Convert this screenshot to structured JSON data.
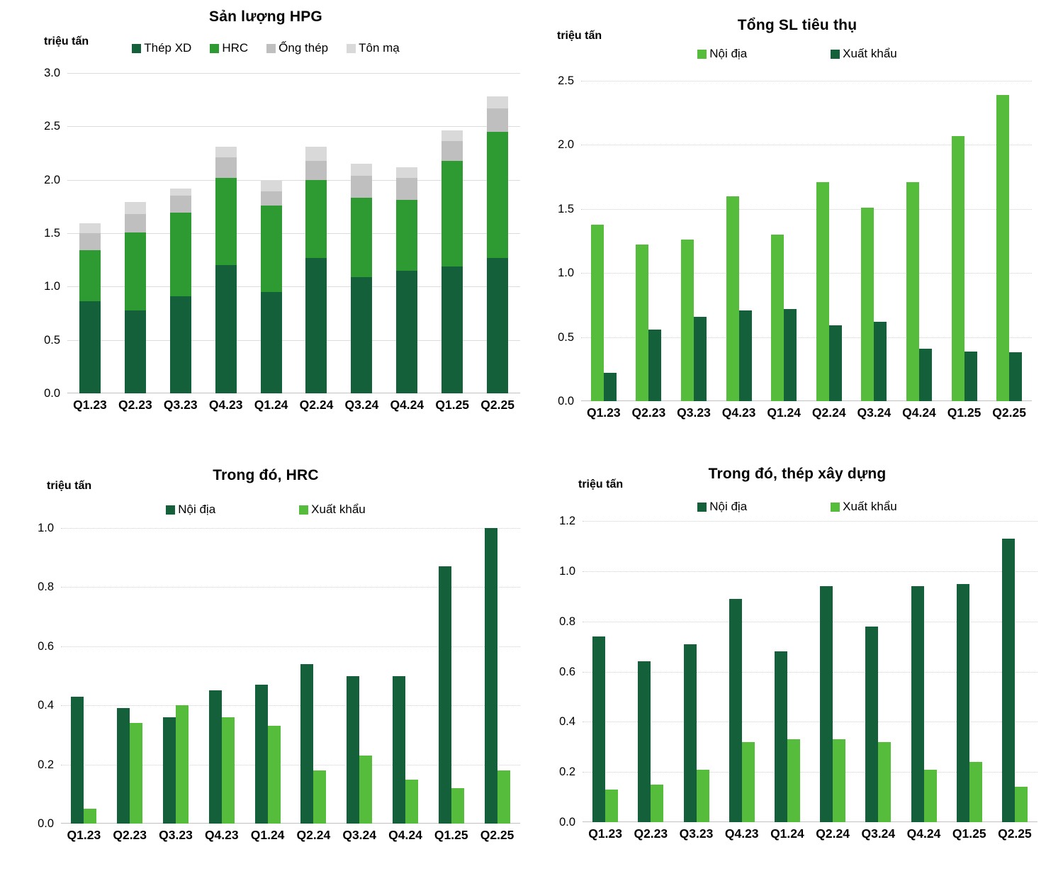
{
  "page": {
    "background": "#ffffff"
  },
  "colors": {
    "dark_green": "#14603A",
    "mid_green": "#2E9B32",
    "light_green": "#55BD3B",
    "gray": "#BFBFBF",
    "light_gray": "#D9D9D9"
  },
  "chart_data": [
    {
      "type": "bar",
      "subtype": "stacked",
      "title": "Sản lượng HPG",
      "unit_label": "triệu tấn",
      "categories": [
        "Q1.23",
        "Q2.23",
        "Q3.23",
        "Q4.23",
        "Q1.24",
        "Q2.24",
        "Q3.24",
        "Q4.24",
        "Q1.25",
        "Q2.25"
      ],
      "series": [
        {
          "name": "Thép XD",
          "color": "dark_green",
          "values": [
            0.86,
            0.78,
            0.91,
            1.2,
            0.95,
            1.27,
            1.09,
            1.15,
            1.19,
            1.27
          ]
        },
        {
          "name": "HRC",
          "color": "mid_green",
          "values": [
            0.48,
            0.73,
            0.78,
            0.82,
            0.81,
            0.73,
            0.74,
            0.66,
            0.99,
            1.18
          ]
        },
        {
          "name": "Ống thép",
          "color": "gray",
          "values": [
            0.16,
            0.17,
            0.16,
            0.19,
            0.13,
            0.18,
            0.21,
            0.21,
            0.18,
            0.22
          ]
        },
        {
          "name": "Tôn mạ",
          "color": "light_gray",
          "values": [
            0.09,
            0.11,
            0.07,
            0.1,
            0.1,
            0.13,
            0.11,
            0.1,
            0.1,
            0.11
          ]
        }
      ],
      "ylim": [
        0,
        3.0
      ],
      "ystep": 0.5,
      "grid_style": "solid",
      "legend_position": "top"
    },
    {
      "type": "bar",
      "subtype": "grouped",
      "title": "Tổng SL tiêu thụ",
      "unit_label": "triệu tấn",
      "categories": [
        "Q1.23",
        "Q2.23",
        "Q3.23",
        "Q4.23",
        "Q1.24",
        "Q2.24",
        "Q3.24",
        "Q4.24",
        "Q1.25",
        "Q2.25"
      ],
      "series": [
        {
          "name": "Nội địa",
          "color": "light_green",
          "values": [
            1.38,
            1.22,
            1.26,
            1.6,
            1.3,
            1.71,
            1.51,
            1.71,
            2.07,
            2.39
          ]
        },
        {
          "name": "Xuất khẩu",
          "color": "dark_green",
          "values": [
            0.22,
            0.56,
            0.66,
            0.71,
            0.72,
            0.59,
            0.62,
            0.41,
            0.39,
            0.38
          ]
        }
      ],
      "ylim": [
        0,
        2.5
      ],
      "ystep": 0.5,
      "grid_style": "dotted",
      "legend_position": "top"
    },
    {
      "type": "bar",
      "subtype": "grouped",
      "title": "Trong đó, HRC",
      "unit_label": "triệu tấn",
      "categories": [
        "Q1.23",
        "Q2.23",
        "Q3.23",
        "Q4.23",
        "Q1.24",
        "Q2.24",
        "Q3.24",
        "Q4.24",
        "Q1.25",
        "Q2.25"
      ],
      "series": [
        {
          "name": "Nội địa",
          "color": "dark_green",
          "values": [
            0.43,
            0.39,
            0.36,
            0.45,
            0.47,
            0.54,
            0.5,
            0.5,
            0.87,
            1.0
          ]
        },
        {
          "name": "Xuất khẩu",
          "color": "light_green",
          "values": [
            0.05,
            0.34,
            0.4,
            0.36,
            0.33,
            0.18,
            0.23,
            0.15,
            0.12,
            0.18
          ]
        }
      ],
      "ylim": [
        0,
        1.0
      ],
      "ystep": 0.2,
      "grid_style": "dotted",
      "legend_position": "top"
    },
    {
      "type": "bar",
      "subtype": "grouped",
      "title": "Trong đó, thép xây dựng",
      "unit_label": "triệu tấn",
      "categories": [
        "Q1.23",
        "Q2.23",
        "Q3.23",
        "Q4.23",
        "Q1.24",
        "Q2.24",
        "Q3.24",
        "Q4.24",
        "Q1.25",
        "Q2.25"
      ],
      "series": [
        {
          "name": "Nội địa",
          "color": "dark_green",
          "values": [
            0.74,
            0.64,
            0.71,
            0.89,
            0.68,
            0.94,
            0.78,
            0.94,
            0.95,
            1.13
          ]
        },
        {
          "name": "Xuất khẩu",
          "color": "light_green",
          "values": [
            0.13,
            0.15,
            0.21,
            0.32,
            0.33,
            0.33,
            0.32,
            0.21,
            0.24,
            0.14
          ]
        }
      ],
      "ylim": [
        0,
        1.2
      ],
      "ystep": 0.2,
      "grid_style": "dotted",
      "legend_position": "top"
    }
  ]
}
